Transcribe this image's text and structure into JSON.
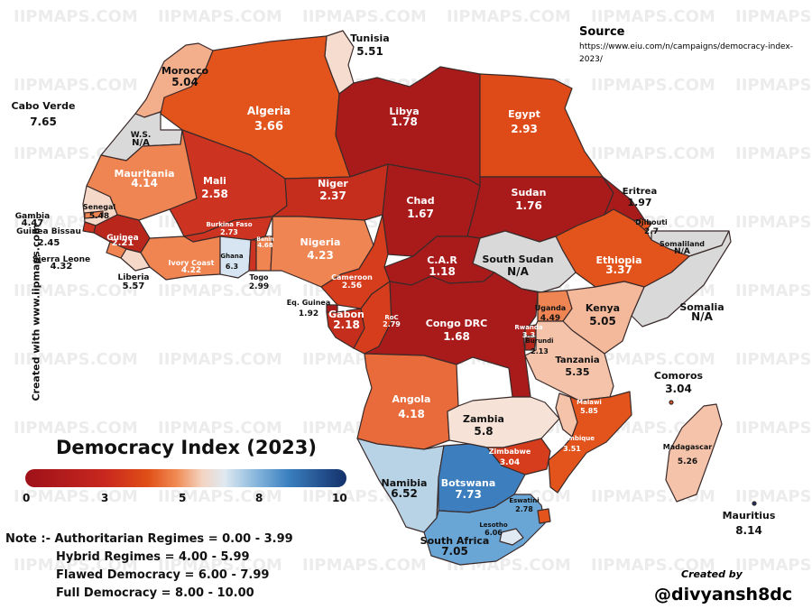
{
  "title": "Democracy Index (2023)",
  "watermark": "IIPMAPS.COM",
  "side_text": "Created with www.iipmaps.com",
  "source": {
    "heading": "Source",
    "url": "https://www.eiu.com/n/campaigns/democracy-index-2023/"
  },
  "credit": {
    "label": "Created by",
    "handle": "@divyansh8dc"
  },
  "legend": {
    "ticks": [
      "0",
      "3",
      "5",
      "8",
      "10"
    ],
    "colors": {
      "low": "#9e1119",
      "mid_low": "#e04e17",
      "mid": "#f4d3c1",
      "mid_high": "#86b6dc",
      "high": "#14306a"
    }
  },
  "notes": [
    "Note :- Authoritarian Regimes = 0.00 - 3.99",
    "Hybrid Regimes = 4.00 - 5.99",
    "Flawed Democracy = 6.00 - 7.99",
    "Full Democracy = 8.00 - 10.00"
  ],
  "countries": [
    {
      "name": "Morocco",
      "value": "5.04"
    },
    {
      "name": "Tunisia",
      "value": "5.51"
    },
    {
      "name": "Algeria",
      "value": "3.66"
    },
    {
      "name": "Libya",
      "value": "1.78"
    },
    {
      "name": "Egypt",
      "value": "2.93"
    },
    {
      "name": "W.S.",
      "value": "N/A"
    },
    {
      "name": "Mauritania",
      "value": "4.14"
    },
    {
      "name": "Mali",
      "value": "2.58"
    },
    {
      "name": "Niger",
      "value": "2.37"
    },
    {
      "name": "Chad",
      "value": "1.67"
    },
    {
      "name": "Sudan",
      "value": "1.76"
    },
    {
      "name": "Eritrea",
      "value": "1.97"
    },
    {
      "name": "Djibouti",
      "value": "2.7"
    },
    {
      "name": "Somaliland",
      "value": "N/A"
    },
    {
      "name": "Somalia",
      "value": "N/A"
    },
    {
      "name": "Ethiopia",
      "value": "3.37"
    },
    {
      "name": "South Sudan",
      "value": "N/A"
    },
    {
      "name": "C.A.R",
      "value": "1.18"
    },
    {
      "name": "Senegal",
      "value": "5.48"
    },
    {
      "name": "Gambia",
      "value": "4.47"
    },
    {
      "name": "Guinea Bissau",
      "value": "2.45"
    },
    {
      "name": "Guinea",
      "value": "2.21"
    },
    {
      "name": "Sierra Leone",
      "value": "4.32"
    },
    {
      "name": "Liberia",
      "value": "5.57"
    },
    {
      "name": "Ivory Coast",
      "value": "4.22"
    },
    {
      "name": "Burkina Faso",
      "value": "2.73"
    },
    {
      "name": "Ghana",
      "value": "6.3"
    },
    {
      "name": "Togo",
      "value": "2.99"
    },
    {
      "name": "Benin",
      "value": "4.68"
    },
    {
      "name": "Nigeria",
      "value": "4.23"
    },
    {
      "name": "Cameroon",
      "value": "2.56"
    },
    {
      "name": "Eq. Guinea",
      "value": "1.92"
    },
    {
      "name": "Gabon",
      "value": "2.18"
    },
    {
      "name": "RoC",
      "value": "2.79"
    },
    {
      "name": "Congo DRC",
      "value": "1.68"
    },
    {
      "name": "Uganda",
      "value": "4.49"
    },
    {
      "name": "Kenya",
      "value": "5.05"
    },
    {
      "name": "Rwanda",
      "value": "3.3"
    },
    {
      "name": "Burundi",
      "value": "2.13"
    },
    {
      "name": "Tanzania",
      "value": "5.35"
    },
    {
      "name": "Angola",
      "value": "4.18"
    },
    {
      "name": "Zambia",
      "value": "5.8"
    },
    {
      "name": "Malawi",
      "value": "5.85"
    },
    {
      "name": "Mozambique",
      "value": "3.51"
    },
    {
      "name": "Zimbabwe",
      "value": "3.04"
    },
    {
      "name": "Namibia",
      "value": "6.52"
    },
    {
      "name": "Botswana",
      "value": "7.73"
    },
    {
      "name": "Eswatini",
      "value": "2.78"
    },
    {
      "name": "Lesotho",
      "value": "6.06"
    },
    {
      "name": "South Africa",
      "value": "7.05"
    },
    {
      "name": "Madagascar",
      "value": "5.26"
    },
    {
      "name": "Comoros",
      "value": "3.04"
    },
    {
      "name": "Mauritius",
      "value": "8.14"
    },
    {
      "name": "Cabo Verde",
      "value": "7.65"
    }
  ]
}
